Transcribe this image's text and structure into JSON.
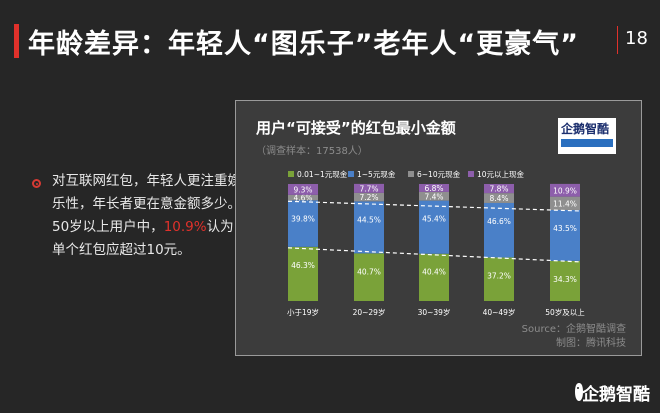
{
  "header": {
    "title": "年龄差异：年轻人“图乐子”老年人“更豪气”",
    "page_number": "18"
  },
  "bullet": {
    "text_part1": "对互联网红包，年轻人更注重娱乐性，年长者更在意金额多少。50岁以上用户中，",
    "highlight": "10.9%",
    "text_part2": "认为单个红包应超过10元。"
  },
  "chart_data": {
    "type": "bar",
    "stacked": true,
    "percent": true,
    "title": "用户“可接受”的红包最小金额",
    "subtitle": "（调查样本：17538人）",
    "categories": [
      "小于19岁",
      "20~29岁",
      "30~39岁",
      "40~49岁",
      "50岁及以上"
    ],
    "series": [
      {
        "name": "0.01~1元现金",
        "color": "#7aa239",
        "values": [
          46.3,
          40.7,
          40.4,
          37.2,
          34.3
        ]
      },
      {
        "name": "1~5元现金",
        "color": "#4a80c8",
        "values": [
          39.8,
          44.5,
          45.4,
          46.6,
          43.5
        ]
      },
      {
        "name": "6~10元现金",
        "color": "#8f8f8f",
        "values": [
          4.6,
          7.2,
          7.4,
          8.4,
          11.4
        ]
      },
      {
        "name": "10元以上现金",
        "color": "#8d5eab",
        "values": [
          9.3,
          7.7,
          6.8,
          7.8,
          10.9
        ]
      }
    ],
    "value_labels": [
      [
        "46.3%",
        "40.7%",
        "40.4%",
        "37.2%",
        "34.3%"
      ],
      [
        "39.8%",
        "44.5%",
        "45.4%",
        "46.6%",
        "43.5%"
      ],
      [
        "4.6%",
        "7.2%",
        "7.4%",
        "8.4%",
        "11.4%"
      ],
      [
        "9.3%",
        "7.7%",
        "6.8%",
        "7.8%",
        "10.9%"
      ]
    ],
    "trend_lines": "dashed white lines connecting top of 0.01~1元 segment and top of 1~5元 segment across groups",
    "legend_position": "top",
    "grid": false,
    "ylim": [
      0,
      100
    ]
  },
  "source": {
    "line1": "Source：企鹅智酷调查",
    "line2": "制图：腾讯科技"
  },
  "logo": {
    "chart_logo": "企鹅智酷",
    "footer_logo": "企鹅智酷"
  },
  "colors": {
    "background": "#262626",
    "accent": "#e0312b",
    "panel": "#3c3c3c"
  }
}
